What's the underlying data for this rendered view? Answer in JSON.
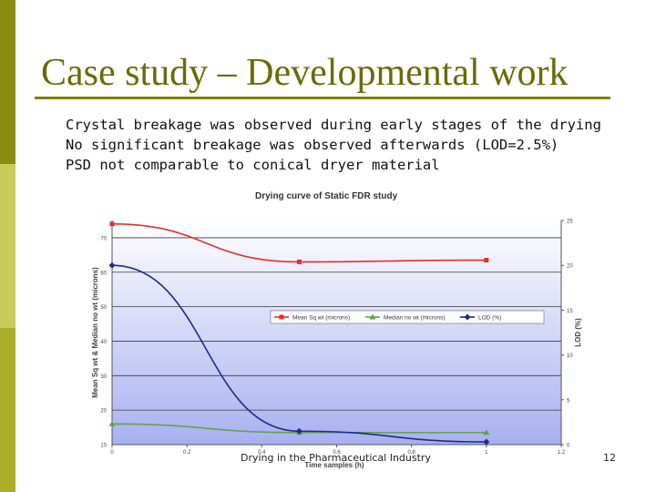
{
  "slide": {
    "title": "Case study – Developmental work",
    "bullets": [
      "Crystal breakage was observed during early stages of the drying",
      "No significant breakage was observed afterwards (LOD=2.5%)",
      "PSD not comparable to conical dryer material"
    ],
    "footer": "Drying in the Pharmaceutical Industry",
    "page_number": "12"
  },
  "chart_data": {
    "type": "line",
    "title": "Drying curve of Static FDR study",
    "xlabel": "Time samples (h)",
    "ylabel": "Mean Sq wt & Median no wt (microns)",
    "y2label": "LOD (%)",
    "xlim": [
      0,
      1.2
    ],
    "ylim": [
      10,
      75
    ],
    "y2lim": [
      0,
      25
    ],
    "x_ticks": [
      "0",
      "0.2",
      "0.4",
      "0.6",
      "0.8",
      "1",
      "1.2"
    ],
    "y_ticks": [
      "10",
      "20",
      "30",
      "40",
      "50",
      "60",
      "70"
    ],
    "y2_ticks": [
      "0",
      "5",
      "10",
      "15",
      "20",
      "25"
    ],
    "legend_position": "middle",
    "grid": true,
    "series": [
      {
        "name": "Mean Sq wt (microns)",
        "axis": "left",
        "color": "#e03030",
        "marker": "square",
        "x": [
          0,
          0.5,
          1
        ],
        "y": [
          74,
          63,
          63.5
        ]
      },
      {
        "name": "Median no wt (microns)",
        "axis": "left",
        "color": "#6a9e50",
        "marker": "triangle",
        "x": [
          0,
          0.5,
          1
        ],
        "y": [
          16,
          13.5,
          13.5
        ]
      },
      {
        "name": "LOD (%)",
        "axis": "right",
        "color": "#1e2b8f",
        "marker": "diamond",
        "x": [
          0,
          0.5,
          1
        ],
        "y": [
          20,
          1.5,
          0.3
        ]
      }
    ]
  }
}
